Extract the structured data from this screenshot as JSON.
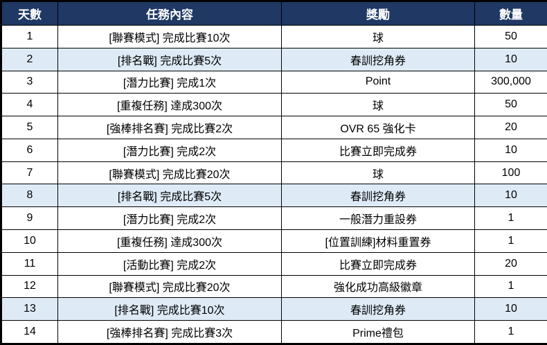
{
  "colors": {
    "header_bg": "#1F3864",
    "header_text": "#FFFFFF",
    "highlight_bg": "#DEEBF7",
    "border": "#000000",
    "row_bg": "#FFFFFF",
    "body_text": "#000000"
  },
  "table": {
    "headers": {
      "day": "天數",
      "task": "任務內容",
      "reward": "獎勵",
      "qty": "數量"
    },
    "rows": [
      {
        "day": "1",
        "task": "[聯賽模式] 完成比賽10次",
        "reward": "球",
        "qty": "50",
        "highlight": false
      },
      {
        "day": "2",
        "task": "[排名戰] 完成比賽5次",
        "reward": "春訓挖角券",
        "qty": "10",
        "highlight": true
      },
      {
        "day": "3",
        "task": "[潛力比賽] 完成1次",
        "reward": "Point",
        "qty": "300,000",
        "highlight": false
      },
      {
        "day": "4",
        "task": "[重複任務] 達成300次",
        "reward": "球",
        "qty": "50",
        "highlight": false
      },
      {
        "day": "5",
        "task": "[強棒排名賽] 完成比賽2次",
        "reward": "OVR 65 強化卡",
        "qty": "20",
        "highlight": false
      },
      {
        "day": "6",
        "task": "[潛力比賽] 完成2次",
        "reward": "比賽立即完成券",
        "qty": "10",
        "highlight": false
      },
      {
        "day": "7",
        "task": "[聯賽模式] 完成比賽20次",
        "reward": "球",
        "qty": "100",
        "highlight": false
      },
      {
        "day": "8",
        "task": "[排名戰] 完成比賽5次",
        "reward": "春訓挖角券",
        "qty": "10",
        "highlight": true
      },
      {
        "day": "9",
        "task": "[潛力比賽] 完成2次",
        "reward": "一般潛力重設券",
        "qty": "1",
        "highlight": false
      },
      {
        "day": "10",
        "task": "[重複任務] 達成300次",
        "reward": "[位置訓練]材料重置券",
        "qty": "1",
        "highlight": false
      },
      {
        "day": "11",
        "task": "[活動比賽] 完成2次",
        "reward": "比賽立即完成券",
        "qty": "20",
        "highlight": false
      },
      {
        "day": "12",
        "task": "[聯賽模式] 完成比賽20次",
        "reward": "強化成功高級徽章",
        "qty": "1",
        "highlight": false
      },
      {
        "day": "13",
        "task": "[排名戰] 完成比賽10次",
        "reward": "春訓挖角券",
        "qty": "10",
        "highlight": true
      },
      {
        "day": "14",
        "task": "[強棒排名賽] 完成比賽3次",
        "reward": "Prime禮包",
        "qty": "1",
        "highlight": false
      }
    ]
  }
}
